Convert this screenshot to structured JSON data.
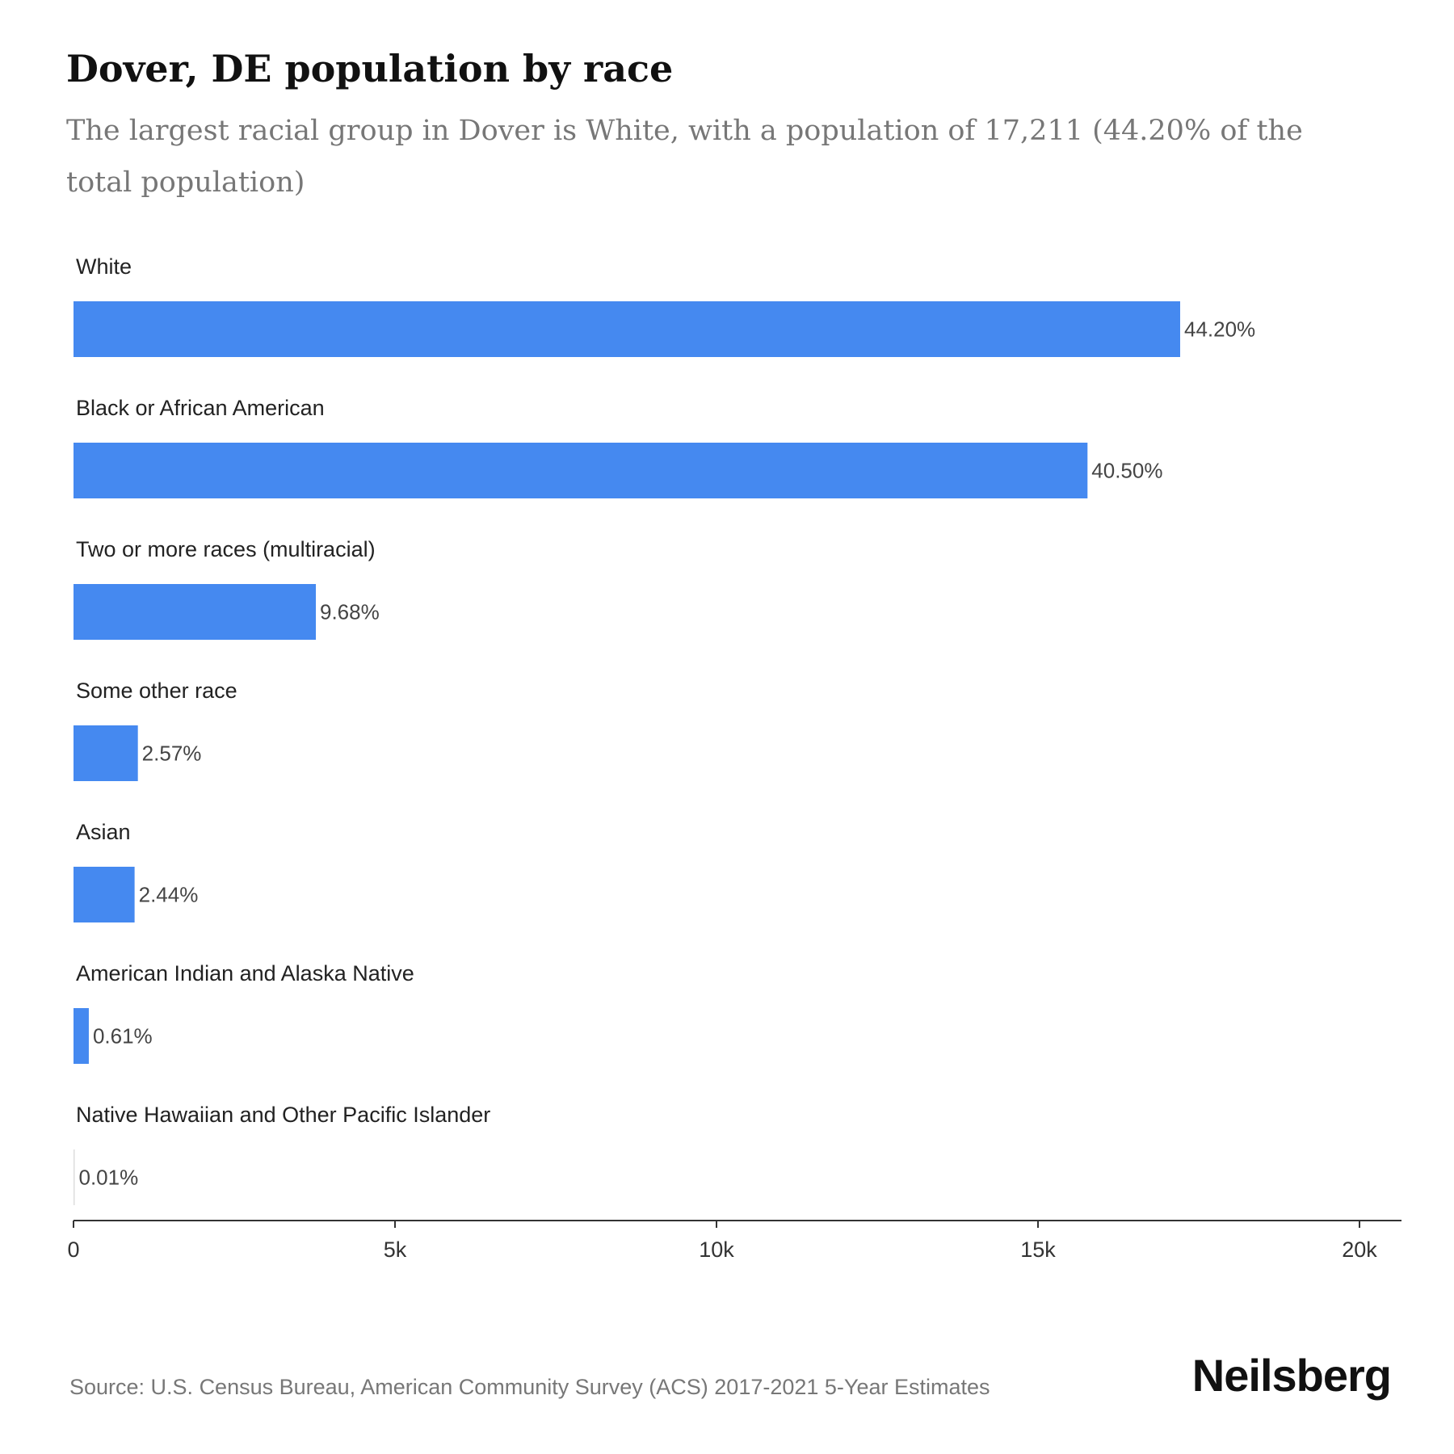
{
  "header": {
    "title": "Dover, DE population by race",
    "subtitle": "The largest racial group in Dover is White, with a population of 17,211 (44.20% of the total population)"
  },
  "footer": {
    "source": "Source: U.S. Census Bureau, American Community Survey (ACS) 2017-2021 5-Year Estimates",
    "brand": "Neilsberg"
  },
  "colors": {
    "bar": "#4589F0",
    "axis": "#333333"
  },
  "chart_data": {
    "type": "bar",
    "orientation": "horizontal",
    "title": "Dover, DE population by race",
    "subtitle": "The largest racial group in Dover is White, with a population of 17,211 (44.20% of the total population)",
    "categories": [
      "White",
      "Black or African American",
      "Two or more races (multiracial)",
      "Some other race",
      "Asian",
      "American Indian and Alaska Native",
      "Native Hawaiian and Other Pacific Islander"
    ],
    "values": [
      17211,
      15770,
      3769,
      1001,
      950,
      238,
      4
    ],
    "value_labels": [
      "44.20%",
      "40.50%",
      "9.68%",
      "2.57%",
      "2.44%",
      "0.61%",
      "0.01%"
    ],
    "xlim": [
      0,
      20640
    ],
    "x_ticks": [
      0,
      5000,
      10000,
      15000,
      20000
    ],
    "x_tick_labels": [
      "0",
      "5k",
      "10k",
      "15k",
      "20k"
    ],
    "xlabel": "",
    "ylabel": "",
    "grid": false,
    "legend": "none"
  }
}
